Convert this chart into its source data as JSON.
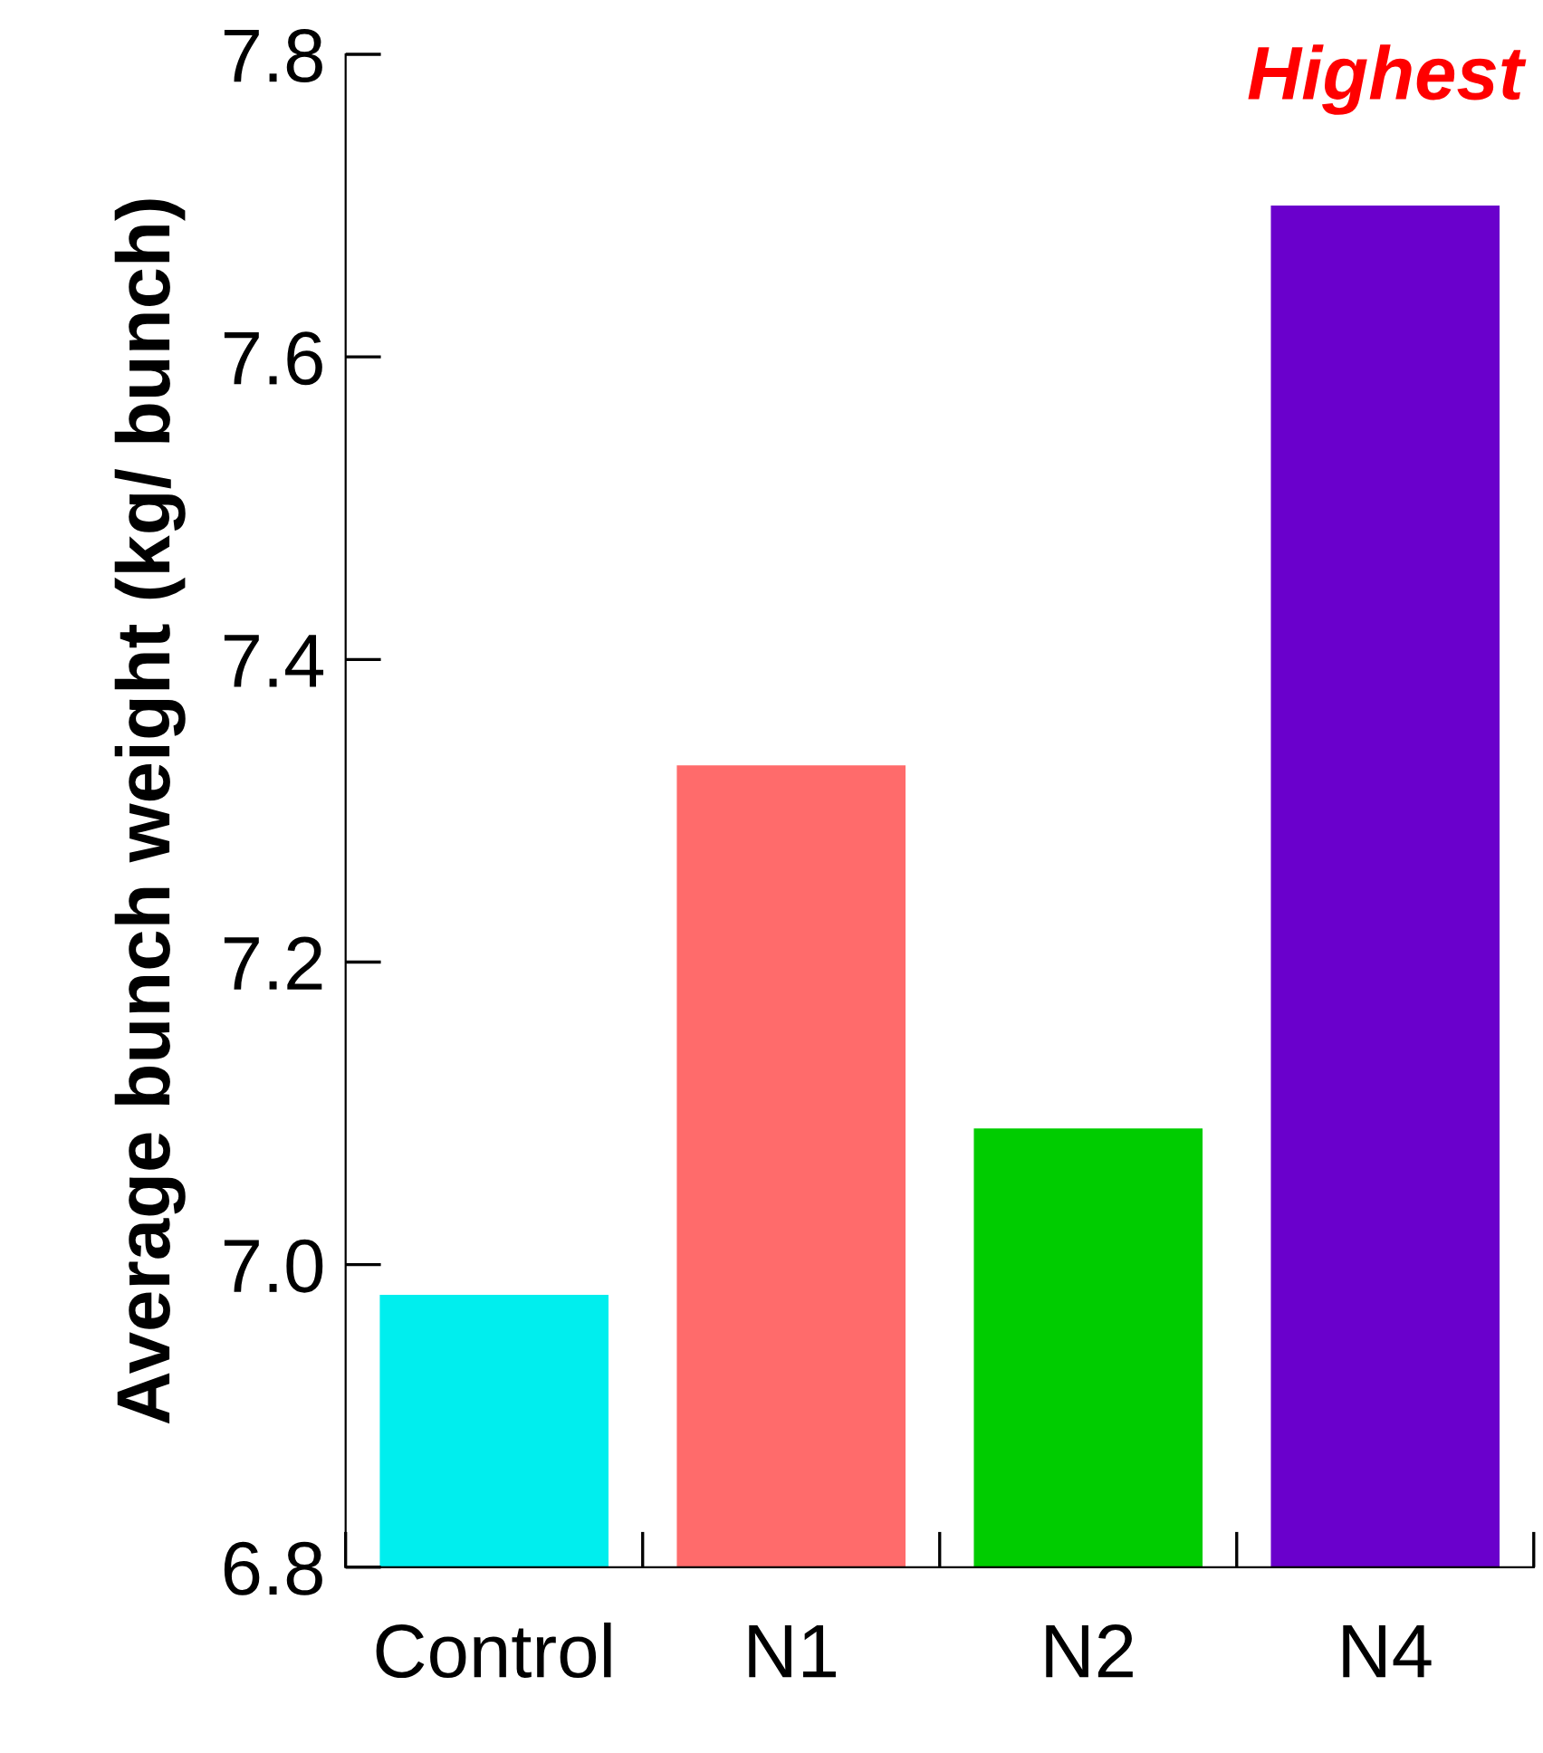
{
  "chart_data": {
    "type": "bar",
    "ylabel": "Average bunch weight (kg/ bunch)",
    "categories": [
      "Control",
      "N1",
      "N2",
      "N4"
    ],
    "values": [
      6.98,
      7.33,
      7.09,
      7.7
    ],
    "colors": [
      "#00eeee",
      "#ff6b6b",
      "#00cc00",
      "#6a00cc"
    ],
    "ylim": [
      6.8,
      7.8
    ],
    "yticks": [
      {
        "value": 6.8,
        "label": "6.8"
      },
      {
        "value": 7.0,
        "label": "7.0"
      },
      {
        "value": 7.2,
        "label": "7.2"
      },
      {
        "value": 7.4,
        "label": "7.4"
      },
      {
        "value": 7.6,
        "label": "7.6"
      },
      {
        "value": 7.8,
        "label": "7.8"
      }
    ],
    "grid": false,
    "legend": false,
    "annotations": [
      {
        "text": "Highest",
        "x": "N4",
        "y": 7.7
      }
    ]
  }
}
